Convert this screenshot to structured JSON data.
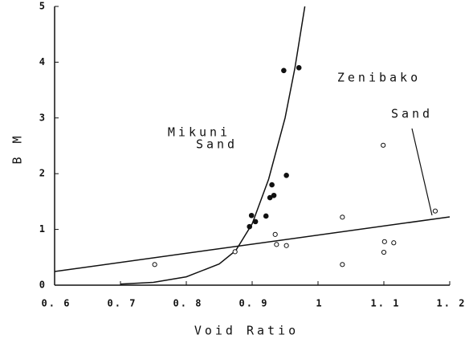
{
  "chart_data": {
    "type": "scatter",
    "xlabel": "Void Ratio",
    "ylabel": "B M",
    "xlim": [
      0.6,
      1.2
    ],
    "ylim": [
      0,
      5
    ],
    "xticks": [
      {
        "value": 0.6,
        "label": "0. 6"
      },
      {
        "value": 0.7,
        "label": "0. 7"
      },
      {
        "value": 0.8,
        "label": "0. 8"
      },
      {
        "value": 0.9,
        "label": "0. 9"
      },
      1,
      {
        "value": 1.1,
        "label": "1. 1"
      },
      {
        "value": 1.2,
        "label": "1. 2"
      }
    ],
    "yticks": [
      0,
      1,
      2,
      3,
      4,
      5
    ],
    "color": "#111111",
    "series": [
      {
        "marker": "filled",
        "x": [
          0.948,
          0.971,
          0.952,
          0.93,
          0.933,
          0.927,
          0.921,
          0.899,
          0.905,
          0.896
        ],
        "values": [
          3.85,
          3.9,
          1.97,
          1.8,
          1.61,
          1.57,
          1.24,
          1.25,
          1.14,
          1.05
        ]
      },
      {
        "marker": "open",
        "x": [
          0.752,
          0.874,
          0.935,
          0.937,
          0.952,
          1.037,
          1.037,
          1.099,
          1.101,
          1.115,
          1.1,
          1.178
        ],
        "values": [
          0.37,
          0.6,
          0.91,
          0.73,
          0.71,
          0.37,
          1.22,
          2.51,
          0.78,
          0.76,
          0.59,
          1.33
        ]
      }
    ],
    "lines": [
      {
        "x": [
          0.7,
          0.75,
          0.8,
          0.85,
          0.875,
          0.9,
          0.925,
          0.95,
          0.965,
          0.98
        ],
        "values": [
          0.02,
          0.05,
          0.15,
          0.38,
          0.62,
          1.1,
          1.9,
          3.0,
          3.9,
          5.0
        ]
      },
      {
        "x": [
          0.6,
          1.2
        ],
        "values": [
          0.245,
          1.225
        ]
      }
    ],
    "annotations": [
      "Mikuni",
      "Sand",
      "Zenibako",
      "Sand"
    ]
  }
}
